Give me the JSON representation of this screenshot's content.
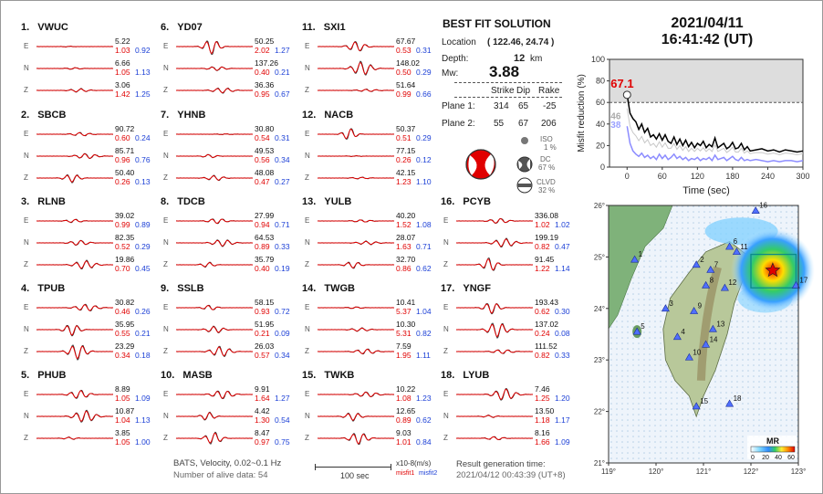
{
  "header": {
    "date": "2021/04/11",
    "time": "16:41:42  (UT)"
  },
  "solution": {
    "title": "BEST FIT SOLUTION",
    "location_label": "Location",
    "location_value": "( 122.46, 24.74 )",
    "depth_label": "Depth:",
    "depth_value": "12",
    "depth_unit": "km",
    "mw_label": "Mw:",
    "mw_value": "3.88",
    "col_strike": "Strike",
    "col_dip": "Dip",
    "col_rake": "Rake",
    "plane1_label": "Plane 1:",
    "plane1": [
      "314",
      "65",
      "-25"
    ],
    "plane2_label": "Plane 2:",
    "plane2": [
      "55",
      "67",
      "206"
    ],
    "iso_label": "ISO",
    "iso_value": "1 %",
    "dc_label": "DC",
    "dc_value": "67 %",
    "clvd_label": "CLVD",
    "clvd_value": "32 %"
  },
  "footer": {
    "line1": "BATS, Velocity, 0.02~0.1 Hz",
    "line2": "Number of alive data: 54",
    "scale_label": "100 sec",
    "units": "x10-8(m/s)",
    "misfit1": "misfit1",
    "misfit2": "misfit2",
    "result_label": "Result generation time:",
    "result_time": "2021/04/12 00:43:39 (UT+8)"
  },
  "stations": [
    {
      "num": "1.",
      "name": "VWUC",
      "comps": [
        [
          "E",
          "5.22",
          "1.03",
          "0.92"
        ],
        [
          "N",
          "6.66",
          "1.05",
          "1.13"
        ],
        [
          "Z",
          "3.06",
          "1.42",
          "1.25"
        ]
      ]
    },
    {
      "num": "2.",
      "name": "SBCB",
      "comps": [
        [
          "E",
          "90.72",
          "0.60",
          "0.24"
        ],
        [
          "N",
          "85.71",
          "0.96",
          "0.76"
        ],
        [
          "Z",
          "50.40",
          "0.26",
          "0.13"
        ]
      ]
    },
    {
      "num": "3.",
      "name": "RLNB",
      "comps": [
        [
          "E",
          "39.02",
          "0.99",
          "0.89"
        ],
        [
          "N",
          "82.35",
          "0.52",
          "0.29"
        ],
        [
          "Z",
          "19.86",
          "0.70",
          "0.45"
        ]
      ]
    },
    {
      "num": "4.",
      "name": "TPUB",
      "comps": [
        [
          "E",
          "30.82",
          "0.46",
          "0.26"
        ],
        [
          "N",
          "35.95",
          "0.55",
          "0.21"
        ],
        [
          "Z",
          "23.29",
          "0.34",
          "0.18"
        ]
      ]
    },
    {
      "num": "5.",
      "name": "PHUB",
      "comps": [
        [
          "E",
          "8.89",
          "1.05",
          "1.09"
        ],
        [
          "N",
          "10.87",
          "1.04",
          "1.13"
        ],
        [
          "Z",
          "3.85",
          "1.05",
          "1.00"
        ]
      ]
    },
    {
      "num": "6.",
      "name": "YD07",
      "comps": [
        [
          "E",
          "50.25",
          "2.02",
          "1.27"
        ],
        [
          "N",
          "137.26",
          "0.40",
          "0.21"
        ],
        [
          "Z",
          "36.36",
          "0.95",
          "0.67"
        ]
      ]
    },
    {
      "num": "7.",
      "name": "YHNB",
      "comps": [
        [
          "E",
          "30.80",
          "0.54",
          "0.31"
        ],
        [
          "N",
          "49.53",
          "0.56",
          "0.34"
        ],
        [
          "Z",
          "48.08",
          "0.47",
          "0.27"
        ]
      ]
    },
    {
      "num": "8.",
      "name": "TDCB",
      "comps": [
        [
          "E",
          "27.99",
          "0.94",
          "0.71"
        ],
        [
          "N",
          "64.53",
          "0.89",
          "0.33"
        ],
        [
          "Z",
          "35.79",
          "0.40",
          "0.19"
        ]
      ]
    },
    {
      "num": "9.",
      "name": "SSLB",
      "comps": [
        [
          "E",
          "58.15",
          "0.93",
          "0.72"
        ],
        [
          "N",
          "51.95",
          "0.21",
          "0.09"
        ],
        [
          "Z",
          "26.03",
          "0.57",
          "0.34"
        ]
      ]
    },
    {
      "num": "10.",
      "name": "MASB",
      "comps": [
        [
          "E",
          "9.91",
          "1.64",
          "1.27"
        ],
        [
          "N",
          "4.42",
          "1.30",
          "0.54"
        ],
        [
          "Z",
          "8.47",
          "0.97",
          "0.75"
        ]
      ]
    },
    {
      "num": "11.",
      "name": "SXI1",
      "comps": [
        [
          "E",
          "67.67",
          "0.53",
          "0.31"
        ],
        [
          "N",
          "148.02",
          "0.50",
          "0.29"
        ],
        [
          "Z",
          "51.64",
          "0.99",
          "0.66"
        ]
      ]
    },
    {
      "num": "12.",
      "name": "NACB",
      "comps": [
        [
          "E",
          "50.37",
          "0.51",
          "0.29"
        ],
        [
          "N",
          "77.15",
          "0.26",
          "0.12"
        ],
        [
          "Z",
          "42.15",
          "1.23",
          "1.10"
        ]
      ]
    },
    {
      "num": "13.",
      "name": "YULB",
      "comps": [
        [
          "E",
          "40.20",
          "1.52",
          "1.08"
        ],
        [
          "N",
          "28.07",
          "1.63",
          "0.71"
        ],
        [
          "Z",
          "32.70",
          "0.86",
          "0.62"
        ]
      ]
    },
    {
      "num": "14.",
      "name": "TWGB",
      "comps": [
        [
          "E",
          "10.41",
          "5.37",
          "1.04"
        ],
        [
          "N",
          "10.30",
          "5.31",
          "0.82"
        ],
        [
          "Z",
          "7.59",
          "1.95",
          "1.11"
        ]
      ]
    },
    {
      "num": "15.",
      "name": "TWKB",
      "comps": [
        [
          "E",
          "10.22",
          "1.08",
          "1.23"
        ],
        [
          "N",
          "12.65",
          "0.89",
          "0.62"
        ],
        [
          "Z",
          "9.03",
          "1.01",
          "0.84"
        ]
      ]
    },
    {
      "num": "16.",
      "name": "PCYB",
      "comps": [
        [
          "E",
          "336.08",
          "1.02",
          "1.02"
        ],
        [
          "N",
          "199.19",
          "0.82",
          "0.47"
        ],
        [
          "Z",
          "91.45",
          "1.22",
          "1.14"
        ]
      ]
    },
    {
      "num": "17.",
      "name": "YNGF",
      "comps": [
        [
          "E",
          "193.43",
          "0.62",
          "0.30"
        ],
        [
          "N",
          "137.02",
          "0.24",
          "0.08"
        ],
        [
          "Z",
          "111.52",
          "0.82",
          "0.33"
        ]
      ]
    },
    {
      "num": "18.",
      "name": "LYUB",
      "comps": [
        [
          "E",
          "7.46",
          "1.25",
          "1.20"
        ],
        [
          "N",
          "13.50",
          "1.18",
          "1.17"
        ],
        [
          "Z",
          "8.16",
          "1.66",
          "1.09"
        ]
      ]
    }
  ],
  "chart_data": [
    {
      "type": "line",
      "ylabel": "Misfit reduction (%)",
      "xlabel": "Time (sec)",
      "xlim": [
        -30,
        300
      ],
      "ylim": [
        0,
        100
      ],
      "xticks": [
        "0",
        "60",
        "120",
        "180",
        "240",
        "300"
      ],
      "yticks": [
        "0",
        "20",
        "40",
        "60",
        "80",
        "100"
      ],
      "reference_line": 60,
      "best_value": "67.1",
      "isotropic_value": "46",
      "clvd_value": "38",
      "series": [
        {
          "color": "#000000",
          "x": [
            0,
            5,
            10,
            15,
            20,
            25,
            30,
            35,
            40,
            45,
            50,
            55,
            60,
            65,
            70,
            75,
            80,
            85,
            90,
            95,
            100,
            105,
            110,
            115,
            120,
            125,
            130,
            135,
            140,
            145,
            150,
            155,
            160,
            165,
            170,
            175,
            180,
            185,
            190,
            195,
            200,
            205,
            210,
            220,
            230,
            240,
            250,
            260,
            270,
            280,
            290,
            300
          ],
          "values": [
            67.1,
            50,
            45,
            42,
            35,
            40,
            32,
            36,
            28,
            30,
            26,
            31,
            25,
            30,
            24,
            22,
            28,
            21,
            26,
            20,
            25,
            19,
            23,
            18,
            22,
            20,
            24,
            18,
            21,
            19,
            27,
            18,
            20,
            22,
            17,
            19,
            23,
            17,
            18,
            22,
            16,
            19,
            15,
            16,
            17,
            15,
            16,
            14,
            16,
            15,
            14,
            15
          ]
        },
        {
          "color": "#8c8cff",
          "x": [
            0,
            5,
            10,
            15,
            20,
            25,
            30,
            35,
            40,
            45,
            50,
            55,
            60,
            65,
            70,
            75,
            80,
            85,
            90,
            95,
            100,
            105,
            110,
            115,
            120,
            125,
            130,
            135,
            140,
            145,
            150,
            155,
            160,
            165,
            170,
            175,
            180,
            185,
            190,
            195,
            200,
            205,
            210,
            220,
            230,
            240,
            250,
            260,
            270,
            280,
            290,
            300
          ],
          "values": [
            38,
            22,
            15,
            12,
            10,
            13,
            9,
            11,
            8,
            10,
            7,
            12,
            8,
            11,
            7,
            9,
            12,
            8,
            10,
            7,
            9,
            6,
            8,
            7,
            9,
            6,
            8,
            7,
            9,
            6,
            11,
            7,
            8,
            9,
            6,
            8,
            10,
            7,
            6,
            9,
            6,
            7,
            6,
            7,
            6,
            5,
            6,
            5,
            6,
            6,
            5,
            6
          ]
        }
      ]
    },
    {
      "type": "heatmap",
      "title": "MR",
      "colorbar_ticks": [
        "0",
        "20",
        "40",
        "60"
      ],
      "xticks": [
        "119°",
        "120°",
        "121°",
        "122°",
        "123°"
      ],
      "yticks": [
        "26°",
        "25°",
        "24°",
        "23°",
        "22°",
        "21°"
      ],
      "xlim": [
        119,
        123
      ],
      "ylim": [
        21,
        26
      ],
      "epicenter": {
        "lon": 122.46,
        "lat": 24.74
      },
      "stations": [
        {
          "id": "1",
          "lon": 119.55,
          "lat": 24.95
        },
        {
          "id": "2",
          "lon": 120.85,
          "lat": 24.85
        },
        {
          "id": "3",
          "lon": 120.2,
          "lat": 24.0
        },
        {
          "id": "4",
          "lon": 120.45,
          "lat": 23.45
        },
        {
          "id": "5",
          "lon": 119.6,
          "lat": 23.55
        },
        {
          "id": "6",
          "lon": 121.55,
          "lat": 25.2
        },
        {
          "id": "7",
          "lon": 121.15,
          "lat": 24.75
        },
        {
          "id": "8",
          "lon": 121.05,
          "lat": 24.45
        },
        {
          "id": "9",
          "lon": 120.8,
          "lat": 23.95
        },
        {
          "id": "10",
          "lon": 120.7,
          "lat": 23.05
        },
        {
          "id": "11",
          "lon": 121.7,
          "lat": 25.1
        },
        {
          "id": "12",
          "lon": 121.45,
          "lat": 24.4
        },
        {
          "id": "13",
          "lon": 121.2,
          "lat": 23.6
        },
        {
          "id": "14",
          "lon": 121.05,
          "lat": 23.3
        },
        {
          "id": "15",
          "lon": 120.85,
          "lat": 22.1
        },
        {
          "id": "16",
          "lon": 122.1,
          "lat": 25.9
        },
        {
          "id": "17",
          "lon": 122.95,
          "lat": 24.45
        },
        {
          "id": "18",
          "lon": 121.55,
          "lat": 22.15
        }
      ]
    }
  ]
}
